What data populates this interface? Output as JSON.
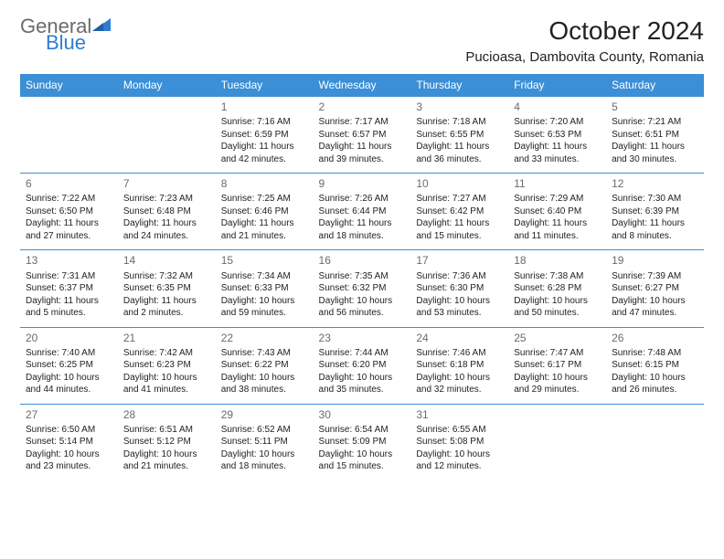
{
  "brand": {
    "part1": "General",
    "part2": "Blue"
  },
  "title": "October 2024",
  "location": "Pucioasa, Dambovita County, Romania",
  "colors": {
    "header_bg": "#3b8fd6",
    "header_text": "#ffffff",
    "row_border": "#3b8fd6",
    "brand_gray": "#6b6b6b",
    "brand_blue": "#2d7dd2",
    "text": "#222222",
    "background": "#ffffff"
  },
  "weekdays": [
    "Sunday",
    "Monday",
    "Tuesday",
    "Wednesday",
    "Thursday",
    "Friday",
    "Saturday"
  ],
  "weeks": [
    [
      null,
      null,
      {
        "n": "1",
        "sr": "7:16 AM",
        "ss": "6:59 PM",
        "dl": "11 hours and 42 minutes."
      },
      {
        "n": "2",
        "sr": "7:17 AM",
        "ss": "6:57 PM",
        "dl": "11 hours and 39 minutes."
      },
      {
        "n": "3",
        "sr": "7:18 AM",
        "ss": "6:55 PM",
        "dl": "11 hours and 36 minutes."
      },
      {
        "n": "4",
        "sr": "7:20 AM",
        "ss": "6:53 PM",
        "dl": "11 hours and 33 minutes."
      },
      {
        "n": "5",
        "sr": "7:21 AM",
        "ss": "6:51 PM",
        "dl": "11 hours and 30 minutes."
      }
    ],
    [
      {
        "n": "6",
        "sr": "7:22 AM",
        "ss": "6:50 PM",
        "dl": "11 hours and 27 minutes."
      },
      {
        "n": "7",
        "sr": "7:23 AM",
        "ss": "6:48 PM",
        "dl": "11 hours and 24 minutes."
      },
      {
        "n": "8",
        "sr": "7:25 AM",
        "ss": "6:46 PM",
        "dl": "11 hours and 21 minutes."
      },
      {
        "n": "9",
        "sr": "7:26 AM",
        "ss": "6:44 PM",
        "dl": "11 hours and 18 minutes."
      },
      {
        "n": "10",
        "sr": "7:27 AM",
        "ss": "6:42 PM",
        "dl": "11 hours and 15 minutes."
      },
      {
        "n": "11",
        "sr": "7:29 AM",
        "ss": "6:40 PM",
        "dl": "11 hours and 11 minutes."
      },
      {
        "n": "12",
        "sr": "7:30 AM",
        "ss": "6:39 PM",
        "dl": "11 hours and 8 minutes."
      }
    ],
    [
      {
        "n": "13",
        "sr": "7:31 AM",
        "ss": "6:37 PM",
        "dl": "11 hours and 5 minutes."
      },
      {
        "n": "14",
        "sr": "7:32 AM",
        "ss": "6:35 PM",
        "dl": "11 hours and 2 minutes."
      },
      {
        "n": "15",
        "sr": "7:34 AM",
        "ss": "6:33 PM",
        "dl": "10 hours and 59 minutes."
      },
      {
        "n": "16",
        "sr": "7:35 AM",
        "ss": "6:32 PM",
        "dl": "10 hours and 56 minutes."
      },
      {
        "n": "17",
        "sr": "7:36 AM",
        "ss": "6:30 PM",
        "dl": "10 hours and 53 minutes."
      },
      {
        "n": "18",
        "sr": "7:38 AM",
        "ss": "6:28 PM",
        "dl": "10 hours and 50 minutes."
      },
      {
        "n": "19",
        "sr": "7:39 AM",
        "ss": "6:27 PM",
        "dl": "10 hours and 47 minutes."
      }
    ],
    [
      {
        "n": "20",
        "sr": "7:40 AM",
        "ss": "6:25 PM",
        "dl": "10 hours and 44 minutes."
      },
      {
        "n": "21",
        "sr": "7:42 AM",
        "ss": "6:23 PM",
        "dl": "10 hours and 41 minutes."
      },
      {
        "n": "22",
        "sr": "7:43 AM",
        "ss": "6:22 PM",
        "dl": "10 hours and 38 minutes."
      },
      {
        "n": "23",
        "sr": "7:44 AM",
        "ss": "6:20 PM",
        "dl": "10 hours and 35 minutes."
      },
      {
        "n": "24",
        "sr": "7:46 AM",
        "ss": "6:18 PM",
        "dl": "10 hours and 32 minutes."
      },
      {
        "n": "25",
        "sr": "7:47 AM",
        "ss": "6:17 PM",
        "dl": "10 hours and 29 minutes."
      },
      {
        "n": "26",
        "sr": "7:48 AM",
        "ss": "6:15 PM",
        "dl": "10 hours and 26 minutes."
      }
    ],
    [
      {
        "n": "27",
        "sr": "6:50 AM",
        "ss": "5:14 PM",
        "dl": "10 hours and 23 minutes."
      },
      {
        "n": "28",
        "sr": "6:51 AM",
        "ss": "5:12 PM",
        "dl": "10 hours and 21 minutes."
      },
      {
        "n": "29",
        "sr": "6:52 AM",
        "ss": "5:11 PM",
        "dl": "10 hours and 18 minutes."
      },
      {
        "n": "30",
        "sr": "6:54 AM",
        "ss": "5:09 PM",
        "dl": "10 hours and 15 minutes."
      },
      {
        "n": "31",
        "sr": "6:55 AM",
        "ss": "5:08 PM",
        "dl": "10 hours and 12 minutes."
      },
      null,
      null
    ]
  ],
  "labels": {
    "sunrise": "Sunrise:",
    "sunset": "Sunset:",
    "daylight": "Daylight:"
  }
}
